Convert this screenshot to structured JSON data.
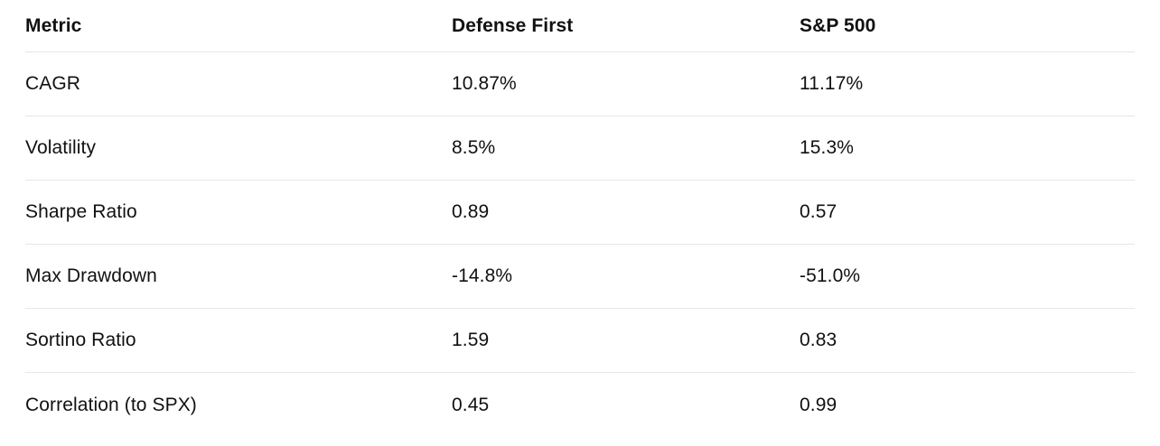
{
  "colors": {
    "background": "#ffffff",
    "text": "#111111",
    "divider": "#e5e7eb"
  },
  "table": {
    "columns": [
      "Metric",
      "Defense First",
      "S&P 500"
    ],
    "rows": [
      [
        "CAGR",
        "10.87%",
        "11.17%"
      ],
      [
        "Volatility",
        "8.5%",
        "15.3%"
      ],
      [
        "Sharpe Ratio",
        "0.89",
        "0.57"
      ],
      [
        "Max Drawdown",
        "-14.8%",
        "-51.0%"
      ],
      [
        "Sortino Ratio",
        "1.59",
        "0.83"
      ],
      [
        "Correlation (to SPX)",
        "0.45",
        "0.99"
      ]
    ]
  },
  "chart_data": {
    "type": "table",
    "columns": [
      "Metric",
      "Defense First",
      "S&P 500"
    ],
    "rows": [
      {
        "metric": "CAGR",
        "defense_first": "10.87%",
        "sp500": "11.17%"
      },
      {
        "metric": "Volatility",
        "defense_first": "8.5%",
        "sp500": "15.3%"
      },
      {
        "metric": "Sharpe Ratio",
        "defense_first": "0.89",
        "sp500": "0.57"
      },
      {
        "metric": "Max Drawdown",
        "defense_first": "-14.8%",
        "sp500": "-51.0%"
      },
      {
        "metric": "Sortino Ratio",
        "defense_first": "1.59",
        "sp500": "0.83"
      },
      {
        "metric": "Correlation (to SPX)",
        "defense_first": "0.45",
        "sp500": "0.99"
      }
    ]
  }
}
